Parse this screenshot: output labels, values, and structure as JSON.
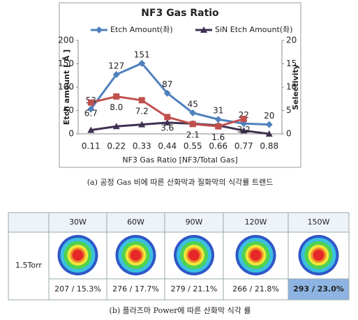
{
  "chart_data": {
    "type": "line",
    "title": "NF3 Gas Ratio",
    "x_label": "NF3 Gas Ratio [NF3/Total Gas]",
    "y_label": "Etch amount [ Å ]",
    "y2_label": "Selectivity",
    "categories": [
      "0.11",
      "0.22",
      "0.33",
      "0.44",
      "0.55",
      "0.66",
      "0.77",
      "0.88"
    ],
    "ylim": [
      0,
      200
    ],
    "yticks": [
      0,
      50,
      100,
      150,
      200
    ],
    "y2lim": [
      0,
      20
    ],
    "y2ticks": [
      0,
      5,
      10,
      15,
      20
    ],
    "legend": "top",
    "series": [
      {
        "name": "Etch Amount(좌)",
        "color": "#4f81bd",
        "marker": "diamond",
        "values": [
          53,
          127,
          151,
          87,
          45,
          31,
          22,
          20
        ]
      },
      {
        "name": "SiN Etch Amount(좌)",
        "color": "#3f3151",
        "marker": "triangle",
        "values": [
          8,
          16,
          20,
          24,
          22,
          18,
          7,
          0
        ]
      },
      {
        "color": "#c0504d",
        "marker": "square",
        "axis": "y2",
        "values": [
          6.7,
          8.0,
          7.2,
          3.6,
          2.1,
          1.6,
          3.2,
          null
        ],
        "value_labels": [
          "6.7",
          "8.0",
          "7.2",
          "3.6",
          "2.1",
          "1.6",
          "3.2",
          null
        ]
      }
    ],
    "caption": "(a) 공정 Gas 비에 따른 산화막과 질화막의 식각률 트랜드"
  },
  "table": {
    "header": [
      "30W",
      "60W",
      "90W",
      "120W",
      "150W"
    ],
    "row_label": "1.5Torr",
    "values": [
      "207 / 15.3%",
      "276 / 17.7%",
      "279 / 21.1%",
      "266 / 21.8%",
      "293 / 23.0%"
    ],
    "caption": "(b) 플라즈마 Power에 따른 산화막 식각 률"
  }
}
